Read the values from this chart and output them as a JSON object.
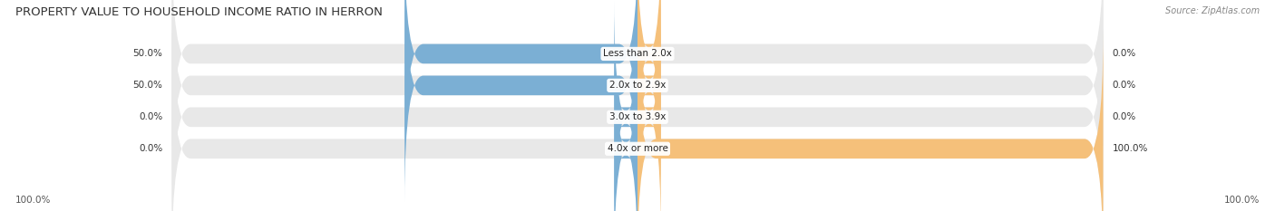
{
  "title": "PROPERTY VALUE TO HOUSEHOLD INCOME RATIO IN HERRON",
  "source": "Source: ZipAtlas.com",
  "categories": [
    "Less than 2.0x",
    "2.0x to 2.9x",
    "3.0x to 3.9x",
    "4.0x or more"
  ],
  "without_mortgage": [
    50.0,
    50.0,
    0.0,
    0.0
  ],
  "with_mortgage": [
    0.0,
    0.0,
    0.0,
    100.0
  ],
  "color_without": "#7bafd4",
  "color_with": "#f5c07a",
  "bg_bar": "#e8e8e8",
  "bar_height": 0.62,
  "figsize": [
    14.06,
    2.33
  ],
  "dpi": 100,
  "title_fontsize": 9.5,
  "label_fontsize": 7.5,
  "tick_fontsize": 7.5,
  "source_fontsize": 7,
  "stub_size": 5.0
}
